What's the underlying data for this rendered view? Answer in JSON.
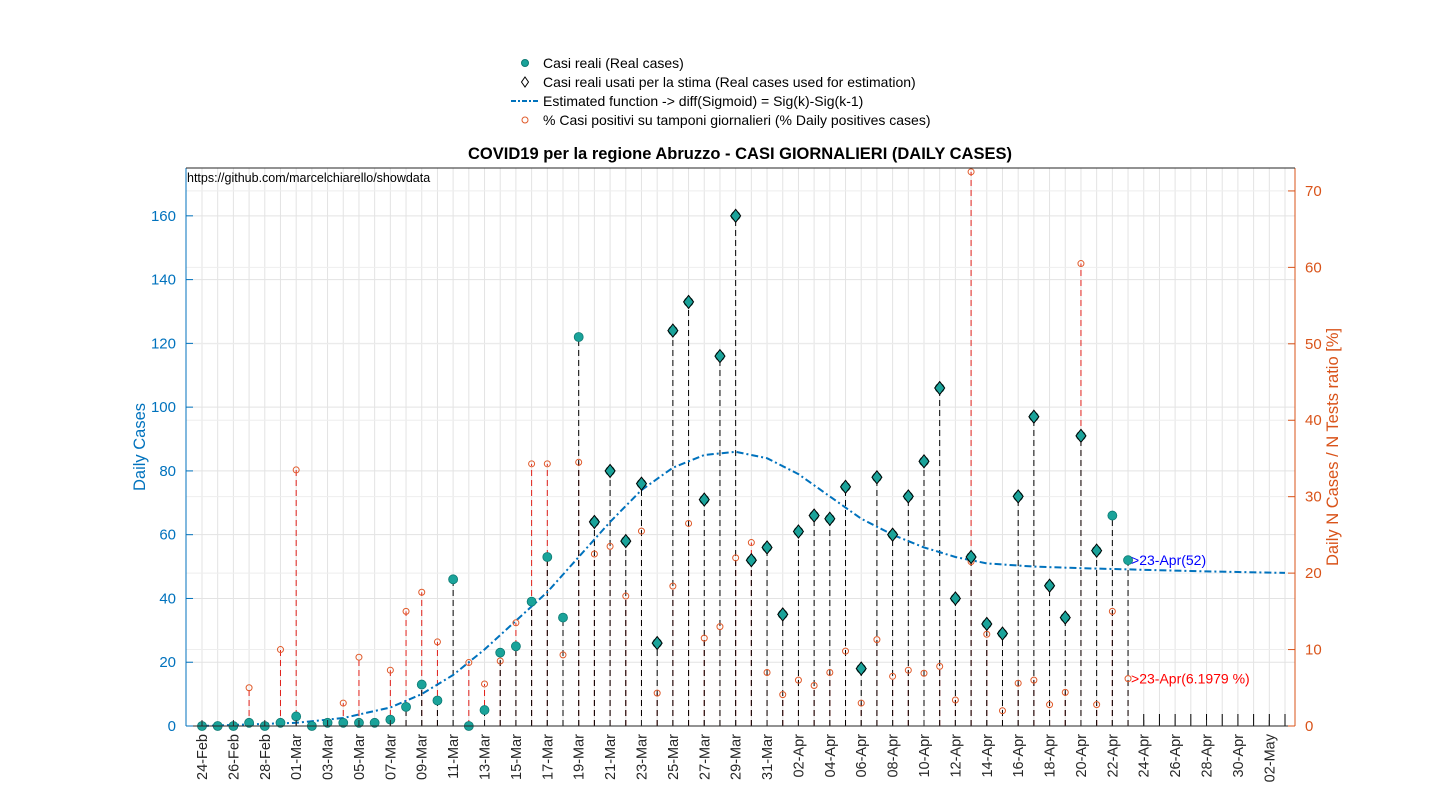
{
  "chart_data": {
    "type": "scatter",
    "title": "COVID19 per la regione Abruzzo - CASI GIORNALIERI (DAILY CASES)",
    "source_note": "https://github.com/marcelchiarello/showdata",
    "ylabel": "Daily Cases",
    "y2label": "Daily N Cases / N Tests ratio [%]",
    "ylim": [
      0,
      175
    ],
    "y2lim": [
      0,
      73
    ],
    "yticks": [
      0,
      20,
      40,
      60,
      80,
      100,
      120,
      140,
      160
    ],
    "y2ticks": [
      0,
      10,
      20,
      30,
      40,
      50,
      60,
      70
    ],
    "xlim_dates": [
      "2020-02-24",
      "2020-05-03"
    ],
    "xtick_labels": [
      "24-Feb",
      "26-Feb",
      "28-Feb",
      "01-Mar",
      "03-Mar",
      "05-Mar",
      "07-Mar",
      "09-Mar",
      "11-Mar",
      "13-Mar",
      "15-Mar",
      "17-Mar",
      "19-Mar",
      "21-Mar",
      "23-Mar",
      "25-Mar",
      "27-Mar",
      "29-Mar",
      "31-Mar",
      "02-Apr",
      "04-Apr",
      "06-Apr",
      "08-Apr",
      "10-Apr",
      "12-Apr",
      "14-Apr",
      "16-Apr",
      "18-Apr",
      "20-Apr",
      "22-Apr",
      "24-Apr",
      "26-Apr",
      "28-Apr",
      "30-Apr",
      "02-May"
    ],
    "grid": true,
    "legend_position": "top-center",
    "colors": {
      "left_axis": "#0072bd",
      "right_axis": "#d95319",
      "real_cases": "#1aa39a",
      "stem_cases": "#000000",
      "stem_pct": "#e0201a",
      "pct_marker": "#e05a2a",
      "fit_line": "#0072bd",
      "annotation_cases": "#0000ff",
      "annotation_pct": "#ff0000",
      "grid": "#e3e3e3"
    },
    "series": [
      {
        "name": "Casi reali (Real cases)",
        "marker": "filled-circle",
        "x": [
          "2020-02-24",
          "2020-02-25",
          "2020-02-26",
          "2020-02-27",
          "2020-02-28",
          "2020-02-29",
          "2020-03-01",
          "2020-03-02",
          "2020-03-03",
          "2020-03-04",
          "2020-03-05",
          "2020-03-06",
          "2020-03-07",
          "2020-03-08",
          "2020-03-09",
          "2020-03-10",
          "2020-03-11",
          "2020-03-12",
          "2020-03-13",
          "2020-03-14",
          "2020-03-15",
          "2020-03-16",
          "2020-03-17",
          "2020-03-18",
          "2020-03-19",
          "2020-03-20",
          "2020-03-21",
          "2020-03-22",
          "2020-03-23",
          "2020-03-24",
          "2020-03-25",
          "2020-03-26",
          "2020-03-27",
          "2020-03-28",
          "2020-03-29",
          "2020-03-30",
          "2020-03-31",
          "2020-04-01",
          "2020-04-02",
          "2020-04-03",
          "2020-04-04",
          "2020-04-05",
          "2020-04-06",
          "2020-04-07",
          "2020-04-08",
          "2020-04-09",
          "2020-04-10",
          "2020-04-11",
          "2020-04-12",
          "2020-04-13",
          "2020-04-14",
          "2020-04-15",
          "2020-04-16",
          "2020-04-17",
          "2020-04-18",
          "2020-04-19",
          "2020-04-20",
          "2020-04-21",
          "2020-04-22",
          "2020-04-23"
        ],
        "values": [
          0,
          0,
          0,
          1,
          0,
          1,
          3,
          0,
          1,
          1,
          1,
          1,
          2,
          6,
          13,
          8,
          46,
          0,
          5,
          23,
          25,
          39,
          53,
          34,
          122,
          64,
          80,
          58,
          76,
          26,
          124,
          133,
          71,
          116,
          160,
          52,
          56,
          35,
          61,
          66,
          65,
          75,
          18,
          78,
          60,
          72,
          83,
          106,
          40,
          53,
          32,
          29,
          72,
          97,
          44,
          34,
          91,
          55,
          66,
          52
        ]
      },
      {
        "name": "Casi reali usati per la stima (Real cases used for estimation)",
        "marker": "diamond",
        "x": [
          "2020-03-20",
          "2020-03-21",
          "2020-03-22",
          "2020-03-23",
          "2020-03-24",
          "2020-03-25",
          "2020-03-26",
          "2020-03-27",
          "2020-03-28",
          "2020-03-29",
          "2020-03-30",
          "2020-03-31",
          "2020-04-01",
          "2020-04-02",
          "2020-04-03",
          "2020-04-04",
          "2020-04-05",
          "2020-04-06",
          "2020-04-07",
          "2020-04-08",
          "2020-04-09",
          "2020-04-10",
          "2020-04-11",
          "2020-04-12",
          "2020-04-13",
          "2020-04-14",
          "2020-04-15",
          "2020-04-16",
          "2020-04-17",
          "2020-04-18",
          "2020-04-19",
          "2020-04-20",
          "2020-04-21"
        ],
        "values": [
          64,
          80,
          58,
          76,
          26,
          124,
          133,
          71,
          116,
          160,
          52,
          56,
          35,
          61,
          66,
          65,
          75,
          18,
          78,
          60,
          72,
          83,
          106,
          40,
          53,
          32,
          29,
          72,
          97,
          44,
          34,
          91,
          55
        ]
      },
      {
        "name": "Estimated function -> diff(Sigmoid) = Sig(k)-Sig(k-1)",
        "marker": "dash-dot-line",
        "x": [
          "2020-02-24",
          "2020-02-27",
          "2020-03-01",
          "2020-03-04",
          "2020-03-07",
          "2020-03-09",
          "2020-03-11",
          "2020-03-13",
          "2020-03-15",
          "2020-03-17",
          "2020-03-19",
          "2020-03-21",
          "2020-03-23",
          "2020-03-25",
          "2020-03-27",
          "2020-03-29",
          "2020-03-31",
          "2020-04-02",
          "2020-04-04",
          "2020-04-06",
          "2020-04-08",
          "2020-04-10",
          "2020-04-12",
          "2020-04-14",
          "2020-04-17",
          "2020-04-20",
          "2020-04-24",
          "2020-04-28",
          "2020-05-03"
        ],
        "values": [
          0,
          0.5,
          1,
          2.5,
          5.8,
          10,
          16,
          24,
          33,
          42,
          53,
          64,
          74,
          81,
          85,
          86,
          84,
          79,
          72,
          65,
          60,
          56,
          53,
          51,
          50,
          49.5,
          49,
          48.5,
          48
        ]
      },
      {
        "name": "% Casi positivi su tamponi giornalieri (% Daily positives cases)",
        "marker": "open-circle",
        "axis": "right",
        "x": [
          "2020-02-27",
          "2020-02-29",
          "2020-03-01",
          "2020-03-04",
          "2020-03-05",
          "2020-03-07",
          "2020-03-08",
          "2020-03-09",
          "2020-03-10",
          "2020-03-12",
          "2020-03-13",
          "2020-03-14",
          "2020-03-15",
          "2020-03-16",
          "2020-03-17",
          "2020-03-18",
          "2020-03-19",
          "2020-03-20",
          "2020-03-21",
          "2020-03-22",
          "2020-03-23",
          "2020-03-24",
          "2020-03-25",
          "2020-03-26",
          "2020-03-27",
          "2020-03-28",
          "2020-03-29",
          "2020-03-30",
          "2020-03-31",
          "2020-04-01",
          "2020-04-02",
          "2020-04-03",
          "2020-04-04",
          "2020-04-05",
          "2020-04-06",
          "2020-04-07",
          "2020-04-08",
          "2020-04-09",
          "2020-04-10",
          "2020-04-11",
          "2020-04-12",
          "2020-04-13",
          "2020-04-14",
          "2020-04-15",
          "2020-04-16",
          "2020-04-17",
          "2020-04-18",
          "2020-04-19",
          "2020-04-20",
          "2020-04-21",
          "2020-04-22",
          "2020-04-23"
        ],
        "values": [
          5,
          10,
          33.5,
          3,
          9,
          7.3,
          15,
          17.5,
          11,
          8.3,
          5.5,
          8.5,
          13.5,
          34.3,
          34.3,
          9.3,
          34.5,
          22.5,
          23.5,
          17,
          25.5,
          4.3,
          18.3,
          26.5,
          11.5,
          13,
          22,
          24,
          7,
          4.1,
          6,
          5.3,
          7,
          9.8,
          3,
          11.3,
          6.5,
          7.3,
          6.9,
          7.8,
          3.4,
          21.5,
          12,
          2,
          5.6,
          6,
          2.8,
          4.4,
          60.5,
          2.8,
          15,
          6.2
        ]
      }
    ],
    "annotations": [
      {
        "text": ">23-Apr(52)",
        "x": "2020-04-23",
        "y": 52,
        "axis": "left",
        "color": "annotation_cases"
      },
      {
        "text": ">23-Apr(6.1979 %)",
        "x": "2020-04-23",
        "y": 6.1979,
        "axis": "right",
        "color": "annotation_pct"
      }
    ],
    "extra_right_stems": [
      {
        "x": "2020-04-13",
        "value": 72.5
      }
    ]
  }
}
